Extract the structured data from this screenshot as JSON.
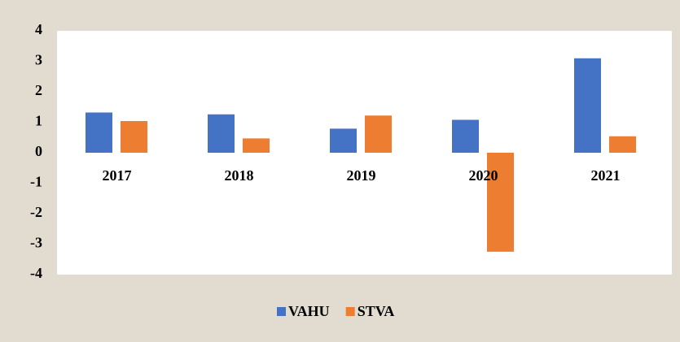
{
  "chart_data": {
    "type": "bar",
    "categories": [
      "2017",
      "2018",
      "2019",
      "2020",
      "2021"
    ],
    "series": [
      {
        "name": "VAHU",
        "color": "#4472c4",
        "values": [
          1.32,
          1.26,
          0.79,
          1.08,
          3.1
        ]
      },
      {
        "name": "STVA",
        "color": "#ed7d31",
        "values": [
          1.04,
          0.47,
          1.22,
          -3.25,
          0.54
        ]
      }
    ],
    "ylim": [
      -4,
      4
    ],
    "yticks": [
      -4,
      -3,
      -2,
      -1,
      0,
      1,
      2,
      3,
      4
    ],
    "grid": false
  }
}
